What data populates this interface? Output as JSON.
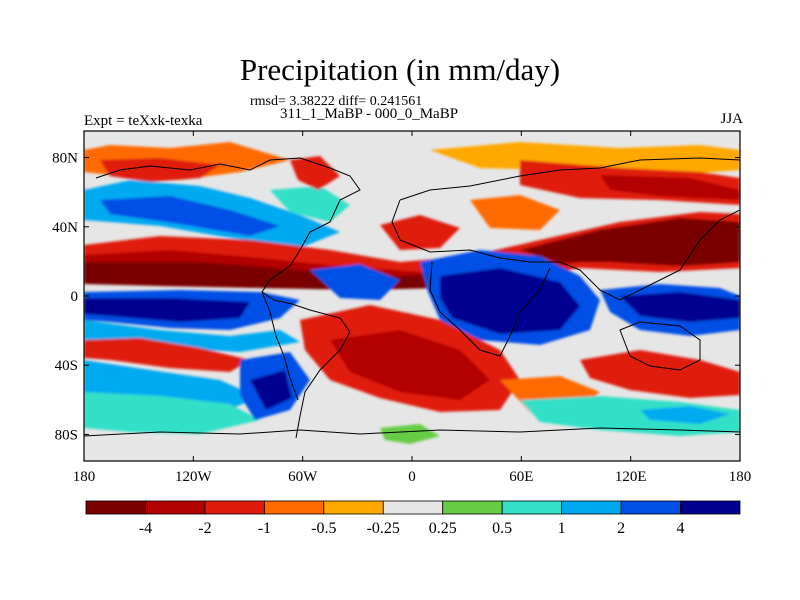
{
  "title": "Precipitation (in mm/day)",
  "stats_line": "rmsd= 3.38222 diff= 0.241561",
  "subtitle": "311_1_MaBP - 000_0_MaBP",
  "left_label": "Expt = teXxk-texka",
  "right_label": "JJA",
  "lat_ticks": [
    {
      "label": "80N",
      "lat": 80
    },
    {
      "label": "40N",
      "lat": 40
    },
    {
      "label": "0",
      "lat": 0
    },
    {
      "label": "40S",
      "lat": -40
    },
    {
      "label": "80S",
      "lat": -80
    }
  ],
  "lon_ticks": [
    {
      "label": "180",
      "lon": -180
    },
    {
      "label": "120W",
      "lon": -120
    },
    {
      "label": "60W",
      "lon": -60
    },
    {
      "label": "0",
      "lon": 0
    },
    {
      "label": "60E",
      "lon": 60
    },
    {
      "label": "120E",
      "lon": 120
    },
    {
      "label": "180",
      "lon": 180
    }
  ],
  "colorbar": {
    "colors": [
      "#7a0000",
      "#b30000",
      "#e01a0a",
      "#ff6a00",
      "#ffa800",
      "#e6e6e6",
      "#66cc44",
      "#33e0c8",
      "#00aaf0",
      "#0050e6",
      "#000090"
    ],
    "labels": [
      "-4",
      "-2",
      "-1",
      "-0.5",
      "-0.25",
      "0.25",
      "0.5",
      "1",
      "2",
      "4"
    ]
  }
}
